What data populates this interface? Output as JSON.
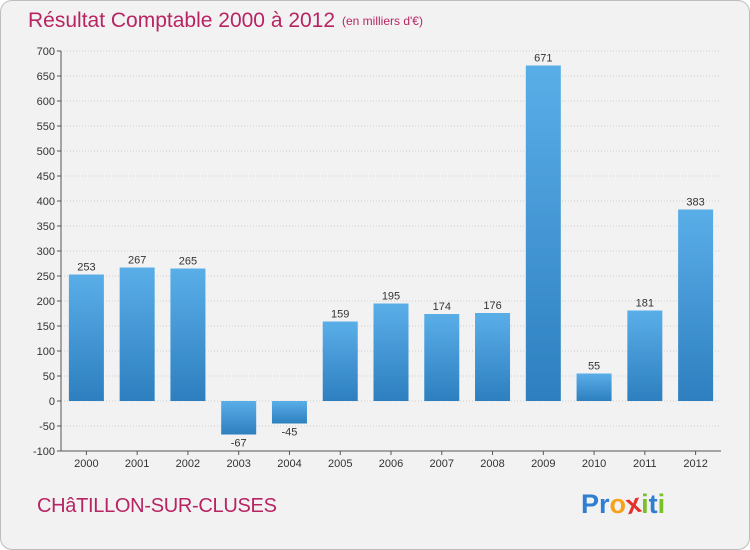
{
  "title": "Résultat Comptable 2000 à 2012",
  "subtitle": "(en milliers d'€)",
  "commune": "CHâTILLON-SUR-CLUSES",
  "logo": {
    "letters": [
      {
        "char": "P",
        "color": "#2f7fd0"
      },
      {
        "char": "r",
        "color": "#2f7fd0"
      },
      {
        "char": "o",
        "color": "#f7a21b"
      },
      {
        "char": "x",
        "color": "#e3322c"
      },
      {
        "char": "i",
        "color": "#7bbf2a"
      },
      {
        "char": "t",
        "color": "#2f7fd0"
      },
      {
        "char": "i",
        "color": "#7bbf2a"
      }
    ]
  },
  "colors": {
    "title": "#b82463",
    "bar_top": "#5aaee8",
    "bar_bottom": "#2d7fbf",
    "grid": "#cfcfcf",
    "axis": "#555555"
  },
  "chart_data": {
    "type": "bar",
    "title": "Résultat Comptable 2000 à 2012",
    "subtitle": "(en milliers d'€)",
    "xlabel": "",
    "ylabel": "",
    "categories": [
      "2000",
      "2001",
      "2002",
      "2003",
      "2004",
      "2005",
      "2006",
      "2007",
      "2008",
      "2009",
      "2010",
      "2011",
      "2012"
    ],
    "values": [
      253,
      267,
      265,
      -67,
      -45,
      159,
      195,
      174,
      176,
      671,
      55,
      181,
      383
    ],
    "value_labels": [
      "253",
      "267",
      "265",
      "-67",
      "-45",
      "159",
      "195",
      "174",
      "176",
      "671",
      "55",
      "181",
      "383"
    ],
    "ylim": [
      -100,
      700
    ],
    "yticks": [
      -100,
      -50,
      0,
      50,
      100,
      150,
      200,
      250,
      300,
      350,
      400,
      450,
      500,
      550,
      600,
      650,
      700
    ],
    "ytick_labels": [
      "-100",
      "-50",
      "0",
      "50",
      "100",
      "150",
      "200",
      "250",
      "300",
      "350",
      "400",
      "450",
      "500",
      "550",
      "600",
      "650",
      "700"
    ],
    "grid": true,
    "legend": "none"
  }
}
